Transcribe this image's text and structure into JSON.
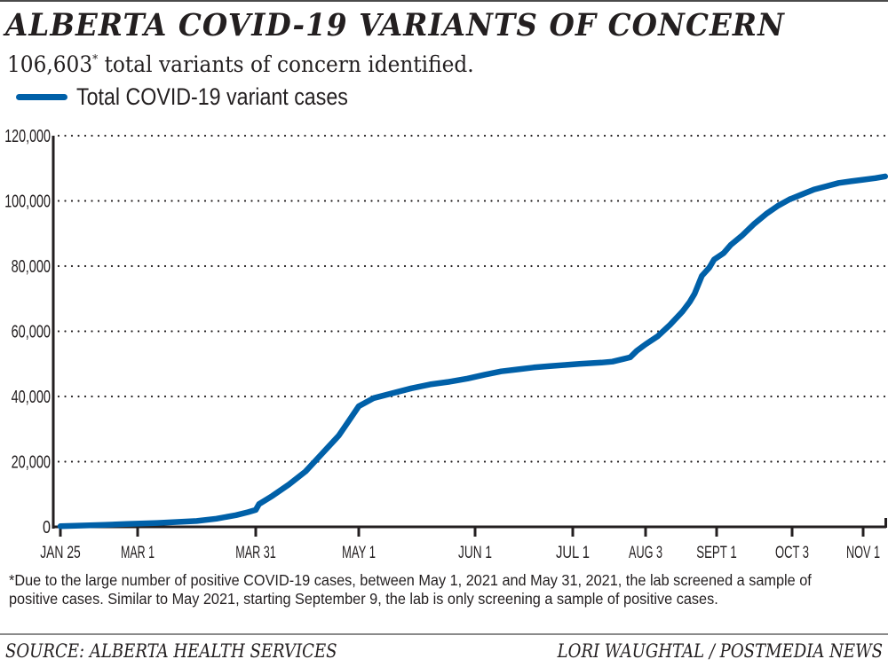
{
  "header": {
    "title": "ALBERTA COVID-19 VARIANTS OF CONCERN",
    "subtitle_number": "106,603",
    "subtitle_mark": "*",
    "subtitle_rest": " total variants of concern identified."
  },
  "footer": {
    "footnote": "*Due to the large number of positive COVID-19 cases, between May 1, 2021 and May 31, 2021, the lab screened a sample of positive cases. Similar to May 2021, starting September 9, the lab is only screening a sample of positive cases.",
    "source": "SOURCE: ALBERTA HEALTH SERVICES",
    "credit": "LORI WAUGHTAL / POSTMEDIA NEWS"
  },
  "chart_data": {
    "type": "line",
    "title": "ALBERTA COVID-19 VARIANTS OF CONCERN",
    "subtitle": "106,603* total variants of concern identified.",
    "xlabel": "",
    "ylabel": "",
    "ylim": [
      0,
      120000
    ],
    "yticks": [
      0,
      20000,
      40000,
      60000,
      80000,
      100000,
      120000
    ],
    "ytick_labels": [
      "0",
      "20,000",
      "40,000",
      "60,000",
      "80,000",
      "100,000",
      "120,000"
    ],
    "x_unit": "days since Jan 25, 2021",
    "xlim": [
      0,
      290
    ],
    "xticks": [
      0,
      35,
      65,
      96,
      127,
      157,
      190,
      219,
      251,
      280
    ],
    "xtick_labels": [
      "JAN 25",
      "MAR 1",
      "MAR 31",
      "MAY 1",
      "JUN 1",
      "JUL 1",
      "AUG 3",
      "SEPT 1",
      "OCT 3",
      "NOV 1"
    ],
    "grid": "horizontal-dotted",
    "legend": "top-left",
    "series": [
      {
        "name": "Total COVID-19 variant cases",
        "color": "#0060a8",
        "x": [
          0,
          10,
          20,
          30,
          40,
          50,
          55,
          60,
          63,
          65,
          66,
          70,
          75,
          80,
          85,
          90,
          93,
          96,
          100,
          105,
          110,
          115,
          120,
          125,
          130,
          135,
          140,
          145,
          150,
          155,
          160,
          165,
          170,
          175,
          180,
          183,
          186,
          188,
          190,
          195,
          200,
          205,
          208,
          210,
          213,
          216,
          218,
          222,
          225,
          230,
          235,
          240,
          245,
          250,
          255,
          260,
          265,
          270,
          275,
          280,
          285,
          289
        ],
        "y": [
          200,
          400,
          600,
          900,
          1200,
          1800,
          2500,
          3600,
          4500,
          5200,
          7000,
          9500,
          13000,
          17000,
          22500,
          28000,
          32500,
          37000,
          39500,
          41000,
          42500,
          43700,
          44500,
          45500,
          46700,
          47700,
          48300,
          48900,
          49300,
          49700,
          50000,
          50200,
          50400,
          50700,
          51500,
          52000,
          54000,
          55000,
          56000,
          58500,
          62000,
          66000,
          69000,
          71500,
          77000,
          79500,
          82000,
          84000,
          86500,
          89500,
          93000,
          96000,
          98500,
          100500,
          102000,
          103500,
          104500,
          105500,
          106000,
          106500,
          107000,
          107500
        ]
      }
    ]
  }
}
